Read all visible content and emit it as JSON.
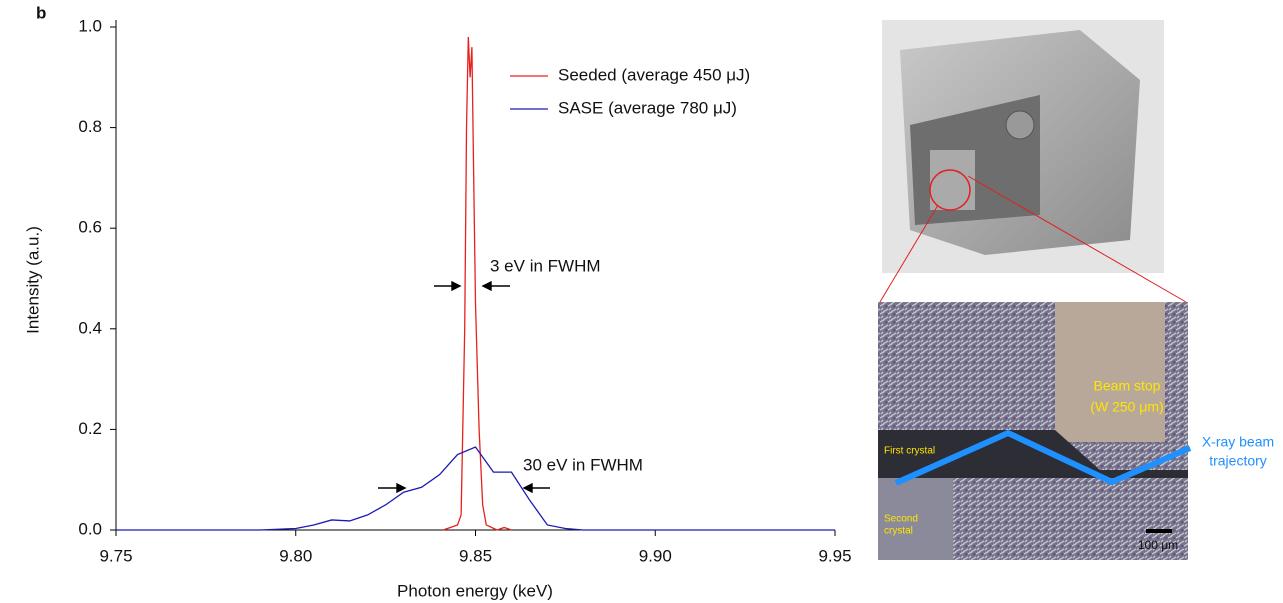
{
  "panel_label": "b",
  "chart_data": {
    "type": "line",
    "x_label": "Photon energy (keV)",
    "y_label": "Intensity (a.u.)",
    "xlim": [
      9.75,
      9.95
    ],
    "xticks": [
      9.75,
      {
        "value": 9.8,
        "label": "9.80"
      },
      9.85,
      {
        "value": 9.9,
        "label": "9.90"
      },
      9.95
    ],
    "ylim": [
      0,
      1
    ],
    "yticks": [
      {
        "value": 0,
        "label": "0.0"
      },
      0.2,
      0.4,
      0.6,
      0.8,
      {
        "value": 1,
        "label": "1.0"
      }
    ],
    "legend": "upper right",
    "series": [
      {
        "name": "Seeded (average 450 μJ)",
        "color": "#e8211d",
        "x": [
          9.841,
          9.843,
          9.845,
          9.846,
          9.847,
          9.8475,
          9.848,
          9.8485,
          9.849,
          9.8495,
          9.85,
          9.851,
          9.852,
          9.853,
          9.856,
          9.858,
          9.86
        ],
        "values": [
          0.0,
          0.005,
          0.01,
          0.03,
          0.4,
          0.8,
          0.98,
          0.9,
          0.96,
          0.7,
          0.45,
          0.2,
          0.05,
          0.01,
          0.0,
          0.005,
          0.0
        ]
      },
      {
        "name": "SASE (average 780 μJ)",
        "color": "#1a1ab4",
        "x": [
          9.75,
          9.79,
          9.8,
          9.805,
          9.81,
          9.815,
          9.82,
          9.825,
          9.83,
          9.835,
          9.84,
          9.845,
          9.85,
          9.855,
          9.86,
          9.865,
          9.87,
          9.875,
          9.88,
          9.95
        ],
        "values": [
          0,
          0,
          0.003,
          0.01,
          0.02,
          0.018,
          0.03,
          0.05,
          0.075,
          0.085,
          0.11,
          0.15,
          0.165,
          0.115,
          0.115,
          0.06,
          0.01,
          0.003,
          0,
          0
        ]
      }
    ],
    "annotations": [
      "3 eV in FWHM",
      "30 eV in FWHM"
    ]
  },
  "photo_labels": {
    "beam_stop": "Beam stop",
    "beam_stop_material": "(W 250 μm)",
    "first_crystal": "First crystal",
    "second_crystal": [
      "Second",
      "crystal"
    ],
    "beam": [
      "X-ray beam",
      "trajectory"
    ],
    "scale_bar": "100 μm"
  }
}
